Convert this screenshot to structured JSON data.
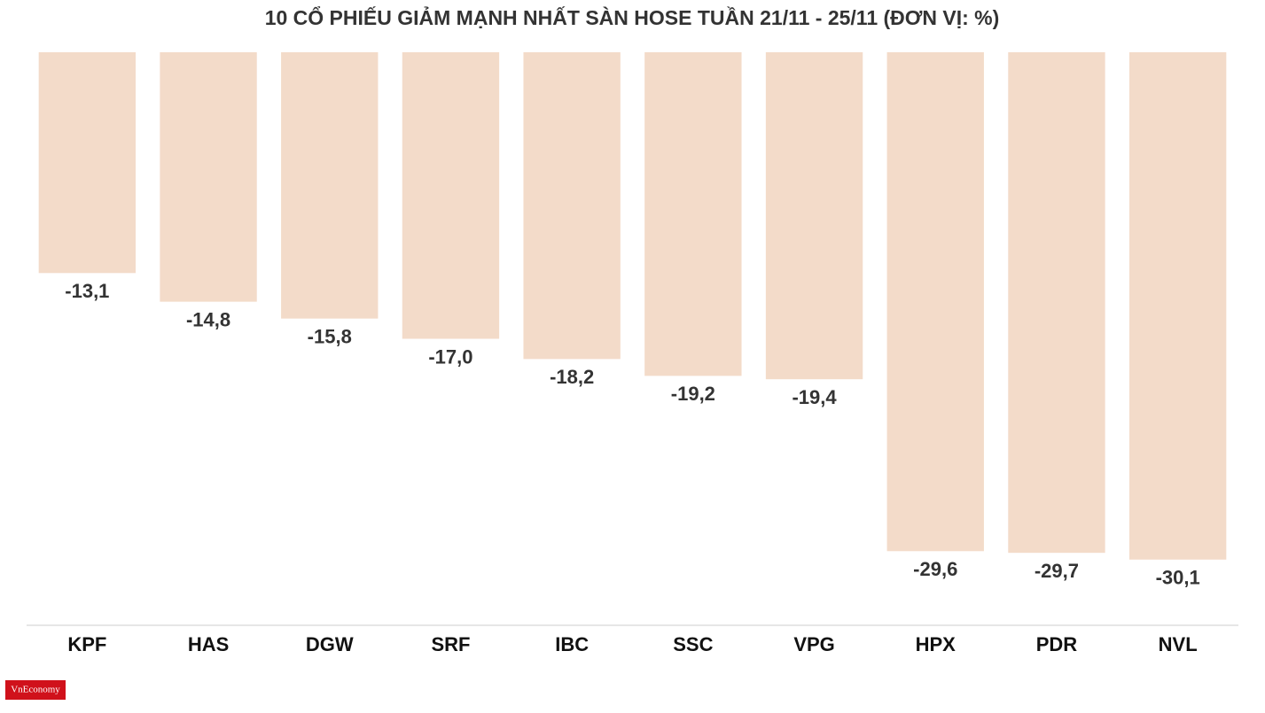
{
  "chart_data": {
    "type": "bar",
    "title": "10 CỔ PHIẾU GIẢM MẠNH NHẤT SÀN HOSE TUẦN 21/11 - 25/11 (ĐƠN VỊ: %)",
    "categories": [
      "KPF",
      "HAS",
      "DGW",
      "SRF",
      "IBC",
      "SSC",
      "VPG",
      "HPX",
      "PDR",
      "NVL"
    ],
    "values": [
      -13.1,
      -14.8,
      -15.8,
      -17.0,
      -18.2,
      -19.2,
      -19.4,
      -29.6,
      -29.7,
      -30.1
    ],
    "value_labels": [
      "-13,1",
      "-14,8",
      "-15,8",
      "-17,0",
      "-18,2",
      "-19,2",
      "-19,4",
      "-29,6",
      "-29,7",
      "-30,1"
    ],
    "color": "#f3dbc9",
    "ylim": [
      -34,
      0
    ],
    "logo": "VnEconomy"
  }
}
